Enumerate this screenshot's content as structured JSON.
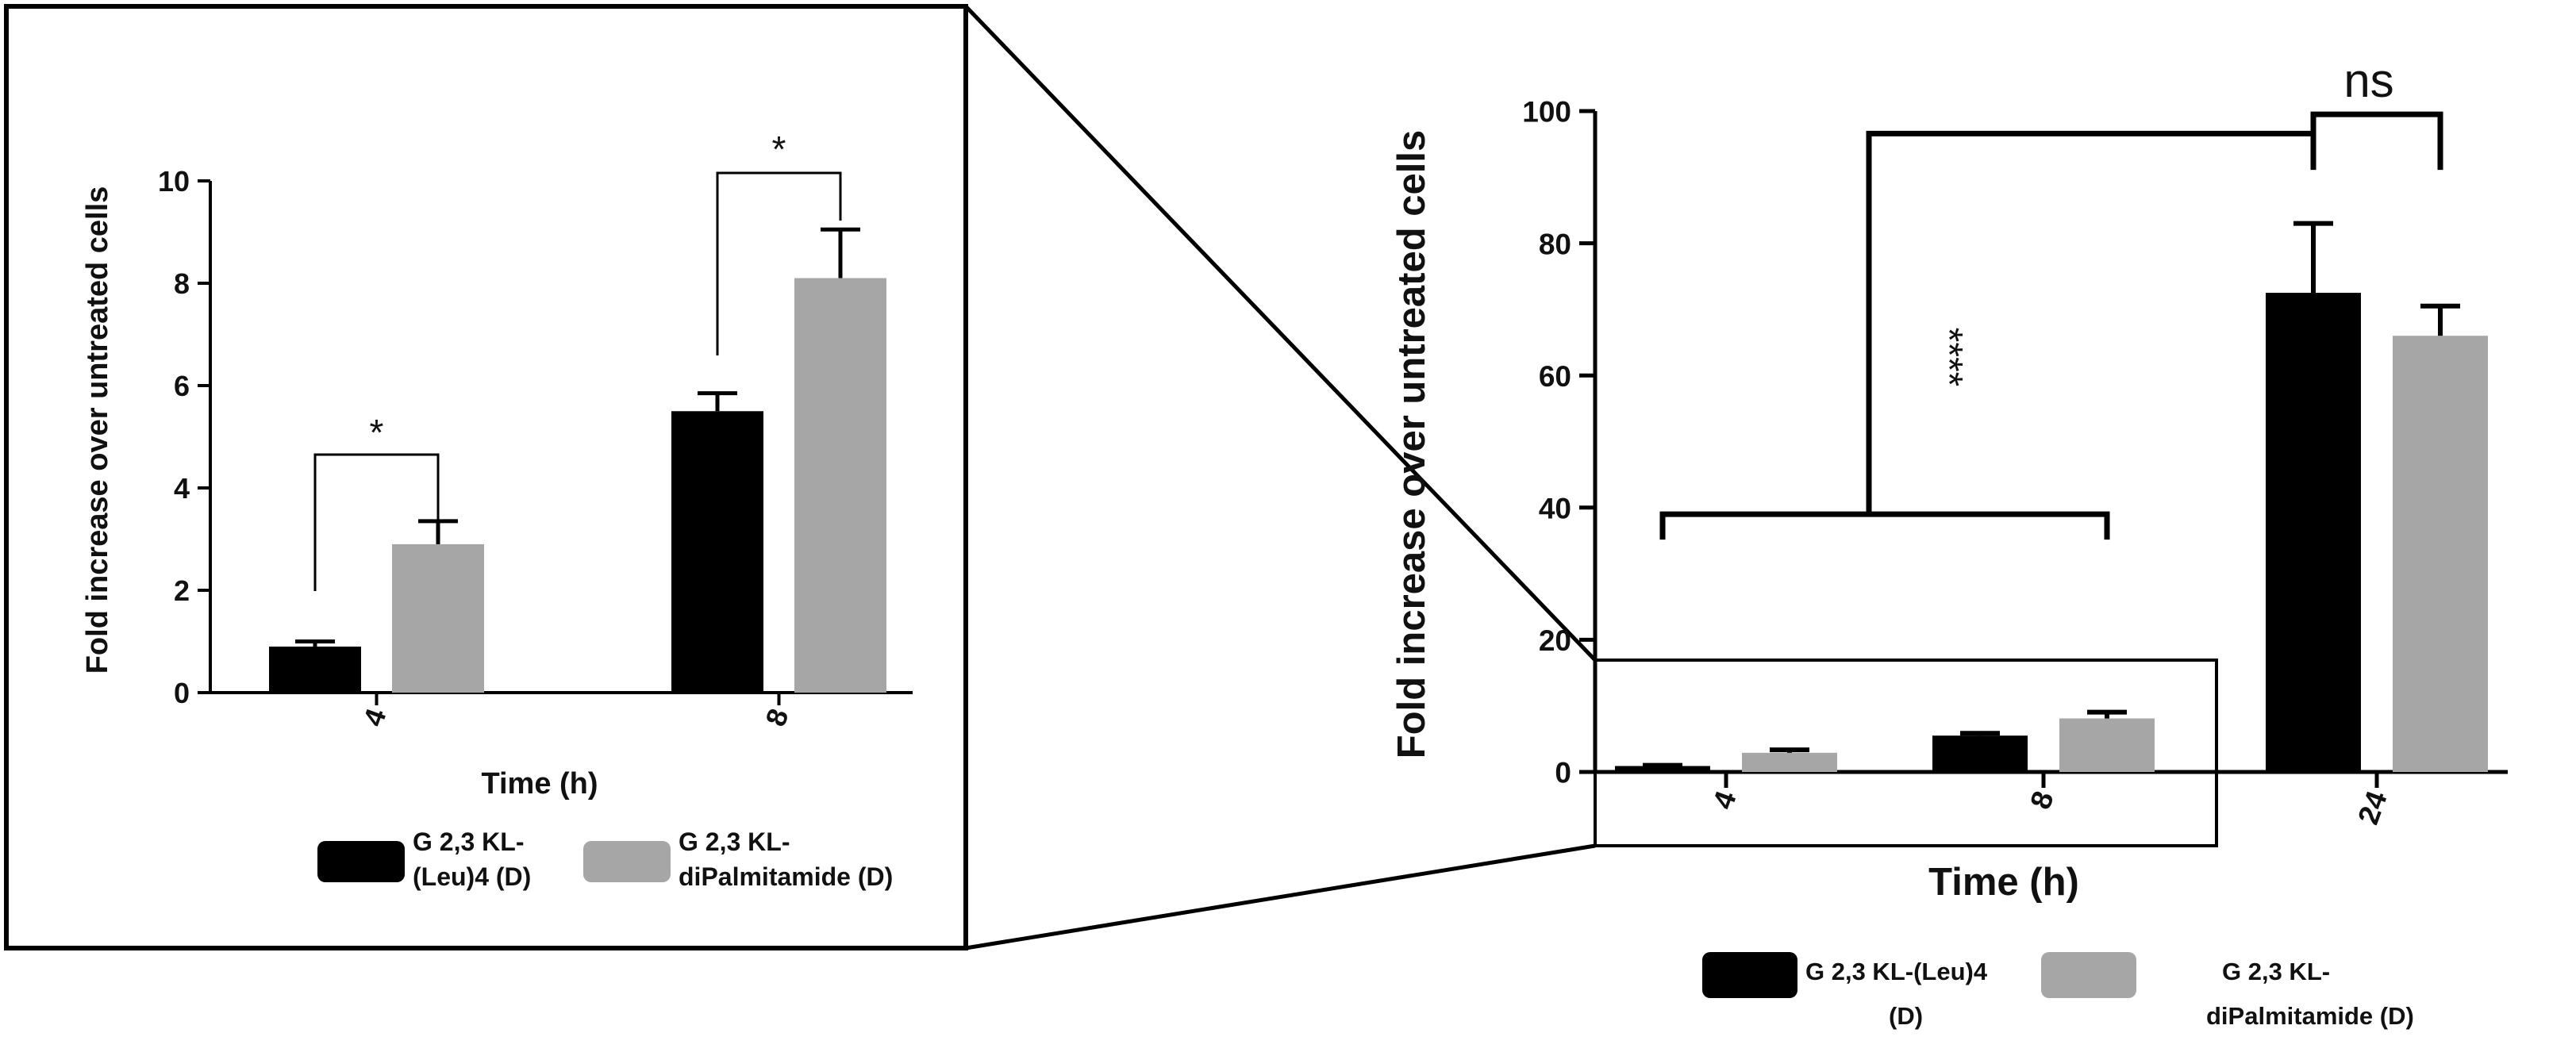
{
  "chart_data": [
    {
      "type": "bar",
      "panel": "inset",
      "title": "",
      "xlabel": "Time (h)",
      "ylabel": "Fold  increase over untreated cells",
      "ylim": [
        0,
        10
      ],
      "yticks": [
        0,
        2,
        4,
        6,
        8,
        10
      ],
      "categories": [
        "4",
        "8"
      ],
      "series": [
        {
          "name": "G 2,3 KL-(Leu)4  (D)",
          "legend_lines": [
            "G 2,3 KL-",
            "(Leu)4  (D)"
          ],
          "color": "#000000",
          "values": [
            0.9,
            5.5
          ],
          "errors": [
            0.1,
            0.35
          ]
        },
        {
          "name": "G 2,3 KL-diPalmitamide  (D)",
          "legend_lines": [
            "G 2,3 KL-",
            "diPalmitamide  (D)"
          ],
          "color": "#a6a6a6",
          "values": [
            2.9,
            8.1
          ],
          "errors": [
            0.45,
            0.95
          ]
        }
      ],
      "annotations": [
        {
          "category": "4",
          "text": "*"
        },
        {
          "category": "8",
          "text": "*"
        }
      ]
    },
    {
      "type": "bar",
      "panel": "main",
      "title": "",
      "xlabel": "Time (h)",
      "ylabel": "Fold increase over untreated cells",
      "ylim": [
        0,
        100
      ],
      "yticks": [
        0,
        20,
        40,
        60,
        80,
        100
      ],
      "categories": [
        "4",
        "8",
        "24"
      ],
      "series": [
        {
          "name": "G 2,3 KL-(Leu)4  (D)",
          "legend_lines": [
            "G 2,3 KL-(Leu)4",
            "(D)"
          ],
          "color": "#000000",
          "values": [
            0.9,
            5.5,
            72.5
          ],
          "errors": [
            0.1,
            0.35,
            10.5
          ]
        },
        {
          "name": "G 2,3 KL-diPalmitamide  (D)",
          "legend_lines": [
            "G 2,3 KL-",
            "diPalmitamide  (D)"
          ],
          "color": "#a6a6a6",
          "values": [
            2.9,
            8.1,
            66.0
          ],
          "errors": [
            0.45,
            0.95,
            4.5
          ]
        }
      ],
      "annotations": [
        {
          "between": [
            "4-8",
            "24"
          ],
          "text": "****"
        },
        {
          "category": "24",
          "text": "ns"
        }
      ]
    }
  ]
}
